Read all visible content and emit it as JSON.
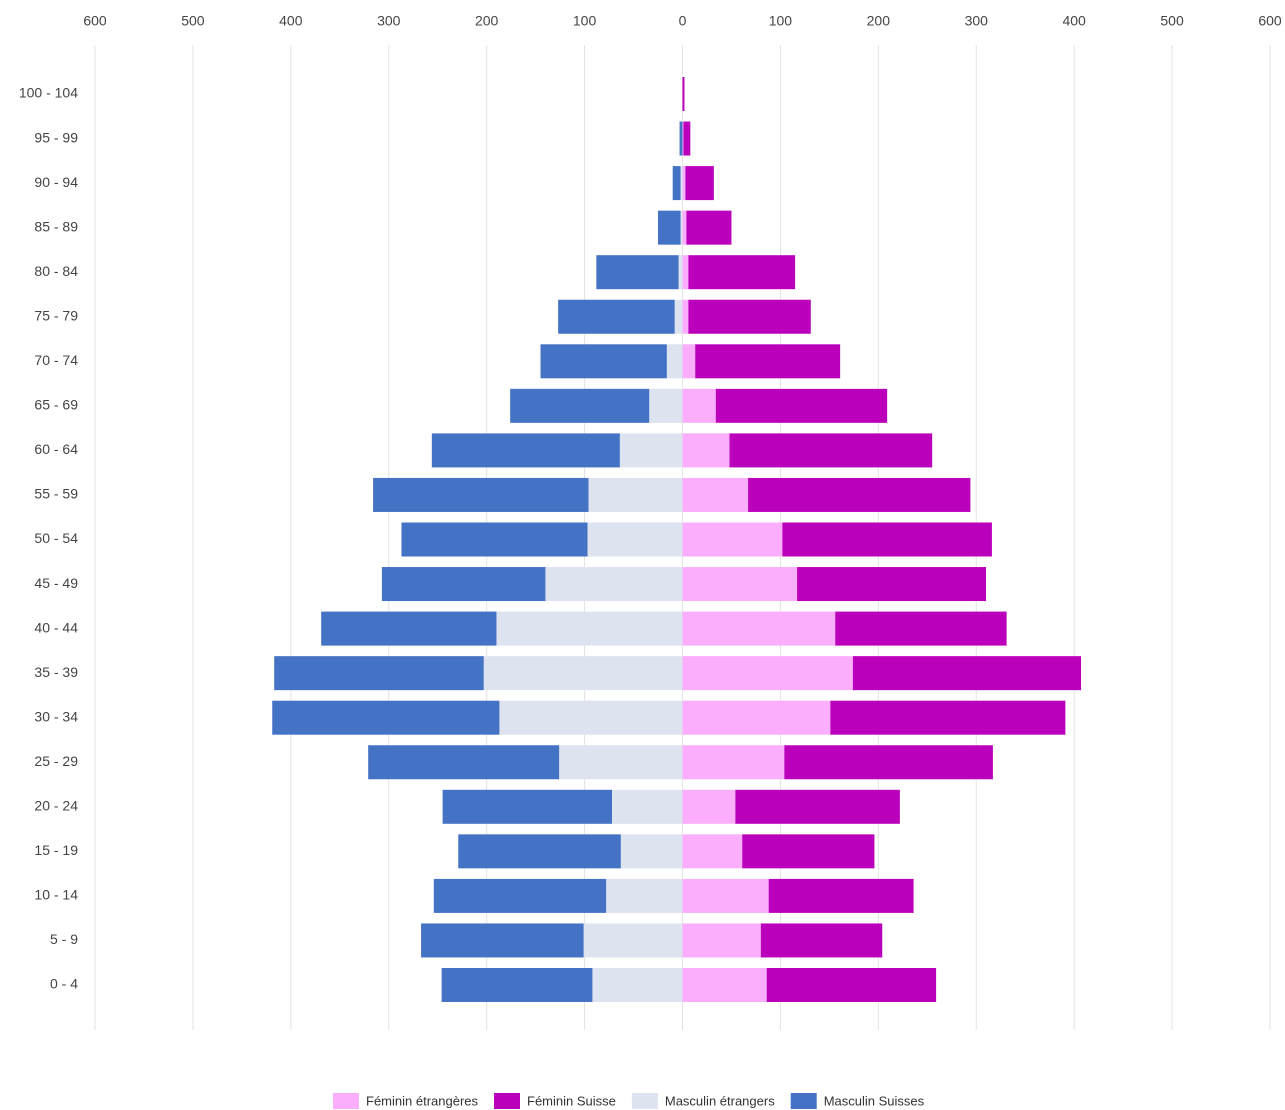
{
  "chart_data": {
    "type": "bar",
    "orientation": "horizontal",
    "stacked": true,
    "categories": [
      "100 - 104",
      "95 - 99",
      "90 - 94",
      "85 - 89",
      "80 - 84",
      "75 - 79",
      "70 - 74",
      "65 - 69",
      "60 - 64",
      "55 - 59",
      "50 - 54",
      "45 - 49",
      "40 - 44",
      "35 - 39",
      "30 - 34",
      "25 - 29",
      "20 - 24",
      "15 - 19",
      "10 - 14",
      "5 - 9",
      "0 - 4"
    ],
    "series": [
      {
        "name": "Féminin étrangères",
        "color": "#fbaefb",
        "values": [
          0,
          1,
          3,
          4,
          6,
          6,
          13,
          34,
          48,
          67,
          102,
          117,
          156,
          174,
          151,
          104,
          54,
          61,
          88,
          80,
          86
        ]
      },
      {
        "name": "Féminin Suisse",
        "color": "#bb00bb",
        "values": [
          2,
          7,
          29,
          46,
          109,
          125,
          148,
          175,
          207,
          227,
          214,
          193,
          175,
          233,
          240,
          213,
          168,
          135,
          148,
          124,
          173
        ]
      },
      {
        "name": "Masculin étrangers",
        "color": "#dde3ef",
        "values": [
          0,
          0,
          -2,
          -2,
          -4,
          -8,
          -16,
          -34,
          -64,
          -96,
          -97,
          -140,
          -190,
          -203,
          -187,
          -126,
          -72,
          -63,
          -78,
          -101,
          -92
        ]
      },
      {
        "name": "Masculin Suisses",
        "color": "#4472c4",
        "values": [
          0,
          -3,
          -8,
          -23,
          -84,
          -119,
          -129,
          -142,
          -192,
          -220,
          -190,
          -167,
          -179,
          -214,
          -232,
          -195,
          -173,
          -166,
          -176,
          -166,
          -154
        ]
      }
    ],
    "xlim": [
      -600,
      600
    ],
    "xticks": [
      {
        "value": -600,
        "label": "600"
      },
      {
        "value": -500,
        "label": "500"
      },
      {
        "value": -400,
        "label": "400"
      },
      {
        "value": -300,
        "label": "300"
      },
      {
        "value": -200,
        "label": "200"
      },
      {
        "value": -100,
        "label": "100"
      },
      0,
      100,
      200,
      300,
      400,
      500,
      600
    ],
    "grid": true,
    "legend": "bottom"
  }
}
